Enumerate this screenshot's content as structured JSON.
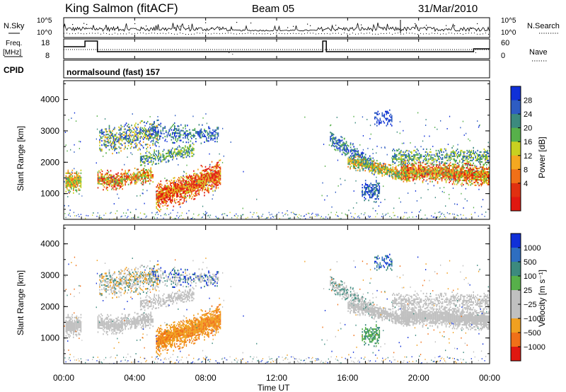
{
  "header": {
    "station": "King Salmon (fitACF)",
    "beam": "Beam 05",
    "date": "31/Mar/2010"
  },
  "top_panels": {
    "nsky_label": "N.Sky",
    "nsearch_label": "N.Search",
    "noise_ticks": [
      "10^5",
      "10^0"
    ],
    "freq_label_line1": "Freq.",
    "freq_label_line2": "[MHz]",
    "freq_ticks": [
      "18",
      "8"
    ],
    "nave_label": "Nave",
    "nave_ticks": [
      "60",
      "0"
    ],
    "cpid_label": "CPID",
    "cpid_value": "normalsound (fast) 157"
  },
  "colors": {
    "power": [
      "#1030d8",
      "#2e5cc2",
      "#3c8a7e",
      "#57b04a",
      "#c8d020",
      "#f4a820",
      "#f07018",
      "#e03010",
      "#e01810"
    ],
    "velocity": [
      "#1030d8",
      "#2e6ec0",
      "#3c8a7e",
      "#57b04a",
      "#c0c0c0",
      "#c0c0c0",
      "#f0a020",
      "#f07018",
      "#e01810"
    ]
  },
  "chart_data": [
    {
      "type": "heatmap",
      "title": "",
      "ylabel": "Slant Range [km]",
      "xlabel": "Time UT",
      "x_ticks": [
        "00:00",
        "04:00",
        "08:00",
        "12:00",
        "16:00",
        "20:00",
        "00:00"
      ],
      "y_ticks": [
        "1000",
        "2000",
        "3000",
        "4000"
      ],
      "xlim_hours": [
        0,
        24
      ],
      "ylim_km": [
        180,
        4600
      ],
      "colorbar_label": "Power [dB]",
      "colorbar_ticks": [
        "28",
        "24",
        "20",
        "16",
        "12",
        "8",
        "4"
      ],
      "colorbar_range": [
        0,
        30
      ]
    },
    {
      "type": "heatmap",
      "title": "",
      "ylabel": "Slant Range [km]",
      "xlabel": "Time UT",
      "x_ticks": [
        "00:00",
        "04:00",
        "08:00",
        "12:00",
        "16:00",
        "20:00",
        "00:00"
      ],
      "y_ticks": [
        "1000",
        "2000",
        "3000",
        "4000"
      ],
      "xlim_hours": [
        0,
        24
      ],
      "ylim_km": [
        180,
        4600
      ],
      "colorbar_label": "Velocity [m s⁻¹]",
      "colorbar_ticks": [
        "1000",
        "500",
        "100",
        "25",
        "−25",
        "−100",
        "−500",
        "−1000"
      ]
    }
  ]
}
